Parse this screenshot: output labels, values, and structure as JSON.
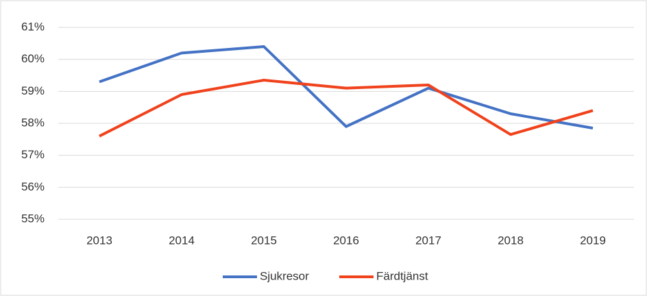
{
  "chart_data": {
    "type": "line",
    "categories": [
      "2013",
      "2014",
      "2015",
      "2016",
      "2017",
      "2018",
      "2019"
    ],
    "series": [
      {
        "name": "Sjukresor",
        "color": "#4472c4",
        "values": [
          59.3,
          60.2,
          60.4,
          57.9,
          59.1,
          58.3,
          57.85
        ]
      },
      {
        "name": "Färdtjänst",
        "color": "#f0421c",
        "values": [
          57.6,
          58.9,
          59.35,
          59.1,
          59.2,
          57.65,
          58.4
        ]
      }
    ],
    "ylim": [
      55,
      61
    ],
    "yticks": [
      {
        "value": 55,
        "label": "55%"
      },
      {
        "value": 56,
        "label": "56%"
      },
      {
        "value": 57,
        "label": "57%"
      },
      {
        "value": 58,
        "label": "58%"
      },
      {
        "value": 59,
        "label": "59%"
      },
      {
        "value": 60,
        "label": "60%"
      },
      {
        "value": 61,
        "label": "61%"
      }
    ],
    "grid": true,
    "legend": "bottom"
  }
}
